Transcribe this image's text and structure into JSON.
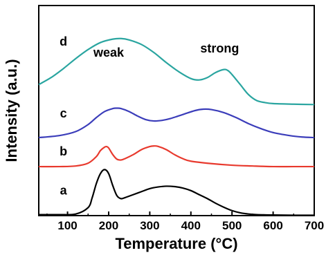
{
  "chart_data": {
    "type": "line",
    "xlabel": "Temperature (°C)",
    "ylabel": "Intensity (a.u.)",
    "xlim": [
      30,
      700
    ],
    "xticks": [
      100,
      200,
      300,
      400,
      500,
      600,
      700
    ],
    "ylim": [
      0,
      10.5
    ],
    "yticks_shown": false,
    "grid": false,
    "series": [
      {
        "name": "a",
        "color": "#000000",
        "x": [
          30,
          80,
          120,
          150,
          160,
          170,
          180,
          190,
          200,
          210,
          220,
          230,
          240,
          260,
          280,
          300,
          320,
          340,
          360,
          380,
          400,
          420,
          440,
          460,
          480,
          500,
          520,
          540,
          560,
          600,
          650,
          700
        ],
        "y": [
          0.05,
          0.05,
          0.08,
          0.4,
          0.9,
          1.6,
          2.1,
          2.3,
          2.1,
          1.5,
          1.0,
          0.85,
          0.9,
          1.05,
          1.2,
          1.35,
          1.43,
          1.47,
          1.45,
          1.38,
          1.25,
          1.05,
          0.85,
          0.62,
          0.42,
          0.25,
          0.14,
          0.08,
          0.05,
          0.03,
          0.02,
          0.02
        ]
      },
      {
        "name": "b",
        "color": "#e83a2e",
        "x": [
          30,
          80,
          120,
          150,
          170,
          180,
          190,
          195,
          200,
          210,
          220,
          230,
          240,
          260,
          280,
          300,
          310,
          320,
          340,
          360,
          380,
          400,
          450,
          500,
          550,
          600,
          650,
          700
        ],
        "y": [
          2.45,
          2.45,
          2.48,
          2.62,
          2.95,
          3.25,
          3.42,
          3.45,
          3.38,
          3.05,
          2.82,
          2.78,
          2.85,
          3.05,
          3.3,
          3.45,
          3.48,
          3.46,
          3.3,
          3.05,
          2.85,
          2.72,
          2.6,
          2.52,
          2.48,
          2.45,
          2.45,
          2.45
        ]
      },
      {
        "name": "c",
        "color": "#3b3dba",
        "x": [
          30,
          80,
          120,
          150,
          170,
          190,
          210,
          220,
          230,
          250,
          270,
          290,
          310,
          330,
          350,
          380,
          410,
          430,
          450,
          480,
          510,
          540,
          570,
          600,
          640,
          670,
          700
        ],
        "y": [
          3.9,
          4.0,
          4.2,
          4.55,
          4.9,
          5.2,
          5.35,
          5.37,
          5.35,
          5.2,
          4.98,
          4.8,
          4.73,
          4.76,
          4.85,
          5.05,
          5.25,
          5.32,
          5.3,
          5.15,
          4.9,
          4.6,
          4.35,
          4.15,
          4.0,
          3.93,
          3.9
        ]
      },
      {
        "name": "d",
        "color": "#2aa5a0",
        "x": [
          30,
          60,
          90,
          120,
          150,
          180,
          210,
          230,
          250,
          280,
          310,
          340,
          370,
          400,
          420,
          440,
          460,
          480,
          490,
          500,
          520,
          540,
          560,
          580,
          600,
          650,
          700
        ],
        "y": [
          6.55,
          6.9,
          7.35,
          7.85,
          8.3,
          8.65,
          8.82,
          8.85,
          8.78,
          8.55,
          8.15,
          7.65,
          7.2,
          6.85,
          6.78,
          6.9,
          7.15,
          7.3,
          7.25,
          7.05,
          6.55,
          6.05,
          5.75,
          5.65,
          5.6,
          5.57,
          5.55
        ]
      }
    ],
    "annotations": [
      {
        "text": "weak",
        "x": 200,
        "y": 7.95
      },
      {
        "text": "strong",
        "x": 470,
        "y": 8.15
      }
    ]
  }
}
